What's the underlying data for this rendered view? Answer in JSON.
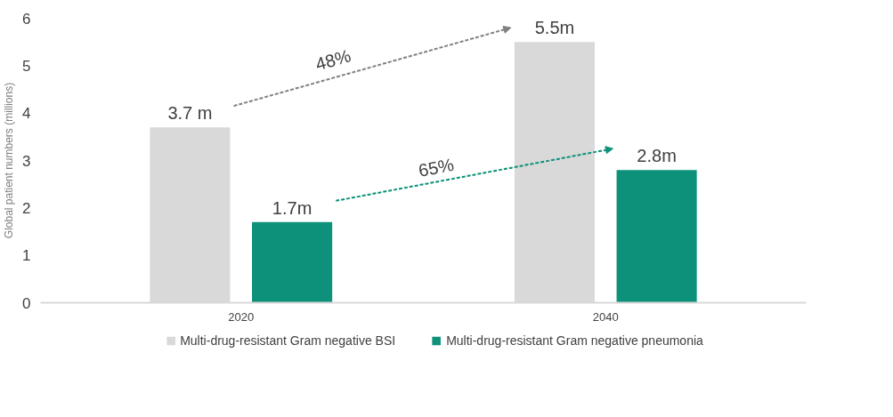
{
  "chart_data": {
    "type": "bar",
    "categories": [
      "2020",
      "2040"
    ],
    "ylabel": "Global patient numbers (millions)",
    "ylim": [
      0,
      6
    ],
    "yticks": [
      0,
      1,
      2,
      3,
      4,
      5,
      6
    ],
    "grid": false,
    "legend": "bottom",
    "series": [
      {
        "name": "Multi-drug-resistant Gram negative BSI",
        "color": "#d9d9d9",
        "values": [
          3.7,
          5.5
        ],
        "value_labels": [
          "3.7 m",
          "5.5m"
        ]
      },
      {
        "name": "Multi-drug-resistant Gram negative pneumonia",
        "color": "#0e917a",
        "values": [
          1.7,
          2.8
        ],
        "value_labels": [
          "1.7m",
          "2.8m"
        ]
      }
    ],
    "annotations": [
      "48%",
      "65%"
    ]
  }
}
